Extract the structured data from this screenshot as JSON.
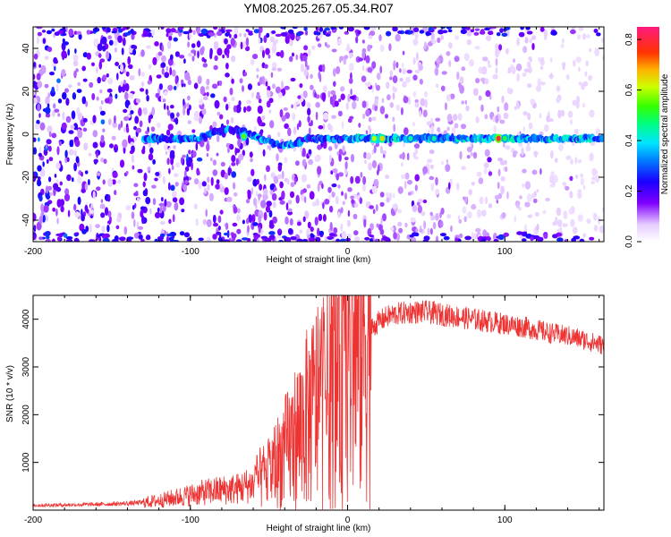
{
  "title": "YM08.2025.267.05.34.R07",
  "colors": {
    "snr_line": "#ee3333",
    "colormap": [
      "#ffffff",
      "#e6ccff",
      "#b366ff",
      "#8000ff",
      "#3300ff",
      "#0066ff",
      "#00ccff",
      "#00ff99",
      "#33ff00",
      "#ccff00",
      "#ffcc00",
      "#ff6600",
      "#ff0000",
      "#ff0080"
    ]
  },
  "chart_data": [
    {
      "type": "heatmap",
      "title": "YM08.2025.267.05.34.R07",
      "xlabel": "Height of straight line (km)",
      "ylabel": "Frequency (Hz)",
      "xlim": [
        -200,
        163
      ],
      "ylim": [
        -50,
        50
      ],
      "xticks": [
        -200,
        -100,
        0,
        100
      ],
      "yticks": [
        -40,
        -20,
        0,
        20,
        40
      ],
      "colorbar": {
        "label": "Normalized spectral amplitude",
        "range": [
          0,
          0.85
        ],
        "ticks": [
          "0.0",
          "0.2",
          "0.4",
          "0.6",
          "0.8"
        ]
      },
      "features": {
        "main_ridge_frequency_hz": -2,
        "ridge_x_range_km": [
          -130,
          163
        ],
        "strong_peaks": [
          {
            "x": -66,
            "y": -1,
            "amp": 0.55
          },
          {
            "x": 17,
            "y": -2,
            "amp": 0.6
          },
          {
            "x": 22,
            "y": -2,
            "amp": 0.65
          },
          {
            "x": 40,
            "y": -2,
            "amp": 0.45
          },
          {
            "x": 55,
            "y": -2,
            "amp": 0.45
          },
          {
            "x": 96,
            "y": -2,
            "amp": 0.8
          },
          {
            "x": 100,
            "y": -2,
            "amp": 0.5
          }
        ]
      }
    },
    {
      "type": "line",
      "xlabel": "Height of straight line (km)",
      "ylabel": "SNR (10 * v/v)",
      "xlim": [
        -200,
        163
      ],
      "ylim": [
        0,
        4500
      ],
      "xticks": [
        -200,
        -100,
        0,
        100
      ],
      "yticks": [
        1000,
        2000,
        3000,
        4000
      ],
      "series": [
        {
          "x": [
            -200,
            -180,
            -160,
            -140,
            -130,
            -120,
            -110,
            -100,
            -90,
            -80,
            -70,
            -60,
            -50,
            -40,
            -30,
            -20,
            -15,
            -10,
            -5,
            0,
            5,
            10,
            15,
            20,
            25,
            30,
            40,
            50,
            60,
            70,
            80,
            90,
            100,
            110,
            120,
            130,
            140,
            150,
            163
          ],
          "y": [
            100,
            110,
            120,
            140,
            160,
            200,
            260,
            320,
            380,
            420,
            450,
            550,
            800,
            1200,
            1700,
            2200,
            2400,
            2600,
            2800,
            3000,
            3300,
            3600,
            3800,
            3950,
            4050,
            4100,
            4150,
            4150,
            4100,
            4050,
            4000,
            3950,
            3900,
            3850,
            3780,
            3700,
            3650,
            3570,
            3450
          ]
        }
      ]
    }
  ]
}
